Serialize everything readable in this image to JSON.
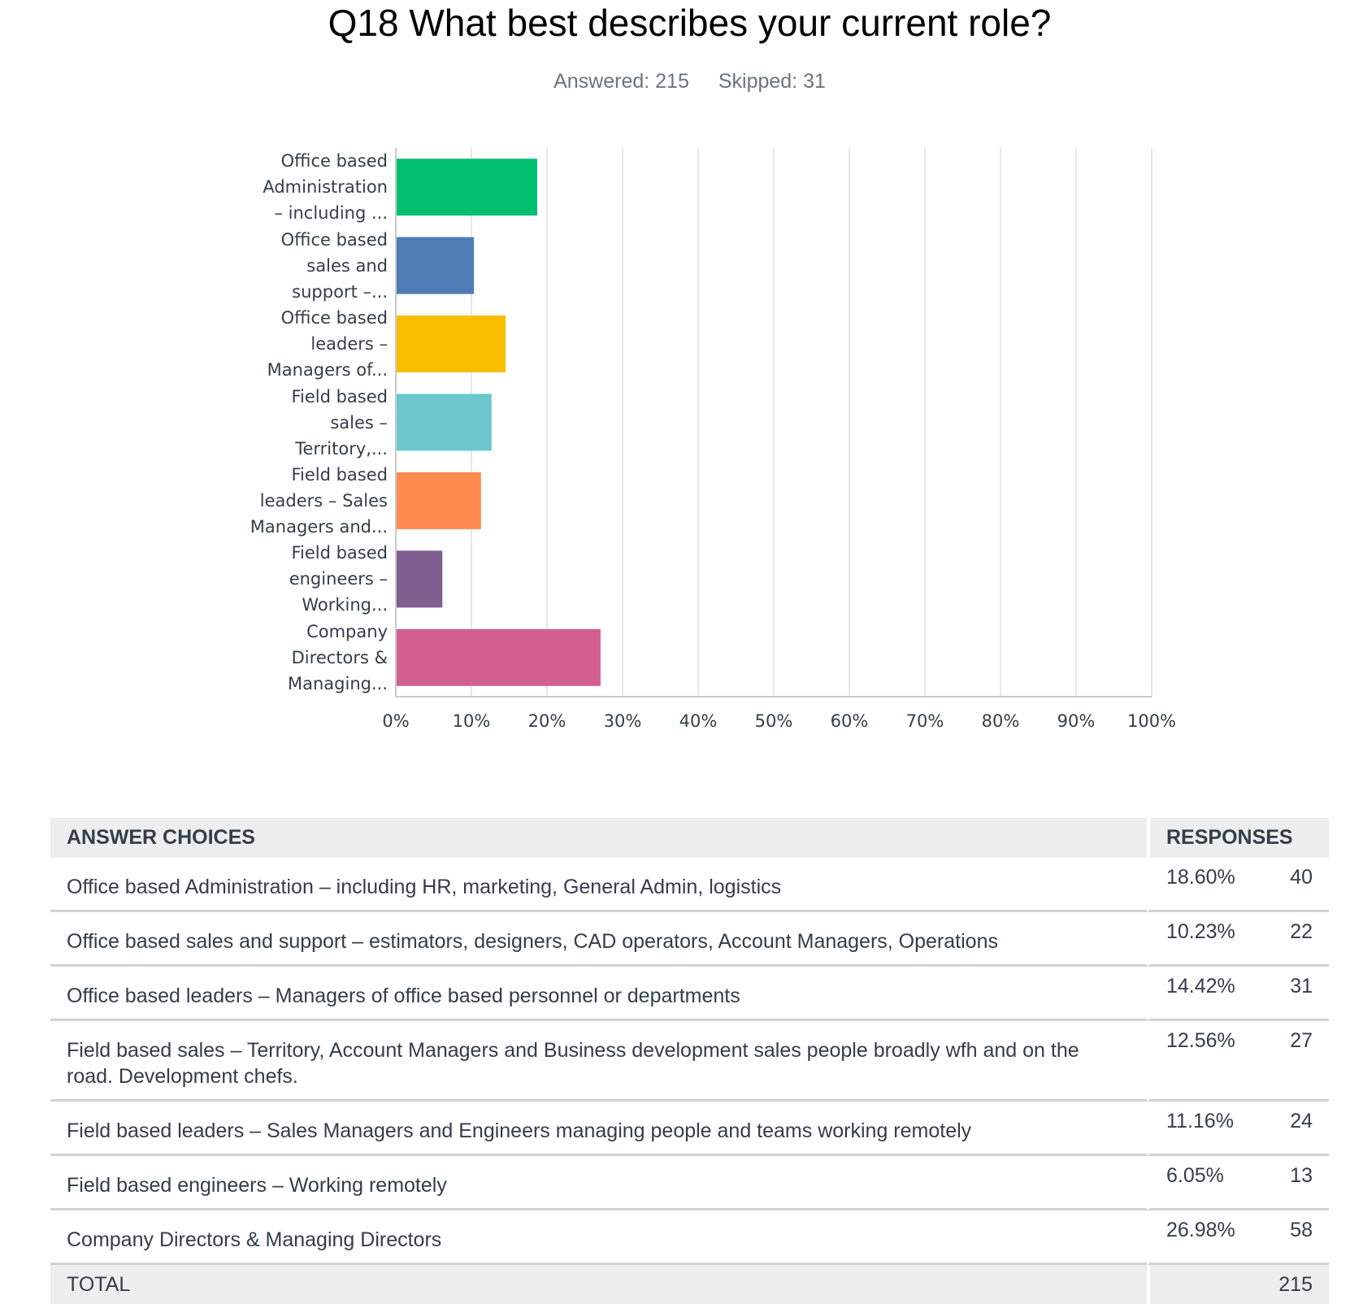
{
  "title": "Q18 What best describes your current role?",
  "answered": "Answered: 215",
  "skipped": "Skipped: 31",
  "chart_data": {
    "type": "bar",
    "orientation": "horizontal",
    "categories": [
      [
        "Office based",
        "Administration",
        "– including ..."
      ],
      [
        "Office based",
        "sales and",
        "support –..."
      ],
      [
        "Office based",
        "leaders –",
        "Managers of..."
      ],
      [
        "Field based",
        "sales –",
        "Territory,..."
      ],
      [
        "Field based",
        "leaders – Sales",
        "Managers and..."
      ],
      [
        "Field based",
        "engineers –",
        "Working..."
      ],
      [
        "Company",
        "Directors &",
        "Managing..."
      ]
    ],
    "values": [
      18.6,
      10.23,
      14.42,
      12.56,
      11.16,
      6.05,
      26.98
    ],
    "colors": [
      "#00bf6f",
      "#507cb6",
      "#f9be00",
      "#6bc8cd",
      "#ff8b4f",
      "#7f5f90",
      "#d25f90"
    ],
    "xlim": [
      0,
      100
    ],
    "xticks": [
      "0%",
      "10%",
      "20%",
      "30%",
      "40%",
      "50%",
      "60%",
      "70%",
      "80%",
      "90%",
      "100%"
    ],
    "grid": true
  },
  "table": {
    "headers": [
      "ANSWER CHOICES",
      "RESPONSES"
    ],
    "rows": [
      {
        "choice": "Office based Administration – including HR, marketing, General Admin, logistics",
        "pct": "18.60%",
        "n": "40"
      },
      {
        "choice": "Office based sales and support – estimators, designers, CAD operators, Account Managers, Operations",
        "pct": "10.23%",
        "n": "22"
      },
      {
        "choice": "Office based leaders – Managers of office based personnel or departments",
        "pct": "14.42%",
        "n": "31"
      },
      {
        "choice": "Field based sales – Territory, Account Managers and Business development sales people broadly wfh and on the road. Development chefs.",
        "pct": "12.56%",
        "n": "27"
      },
      {
        "choice": "Field based leaders – Sales Managers and Engineers managing people and teams working remotely",
        "pct": "11.16%",
        "n": "24"
      },
      {
        "choice": "Field based engineers – Working remotely",
        "pct": "6.05%",
        "n": "13"
      },
      {
        "choice": "Company Directors & Managing Directors",
        "pct": "26.98%",
        "n": "58"
      }
    ],
    "total_label": "TOTAL",
    "total": "215"
  }
}
